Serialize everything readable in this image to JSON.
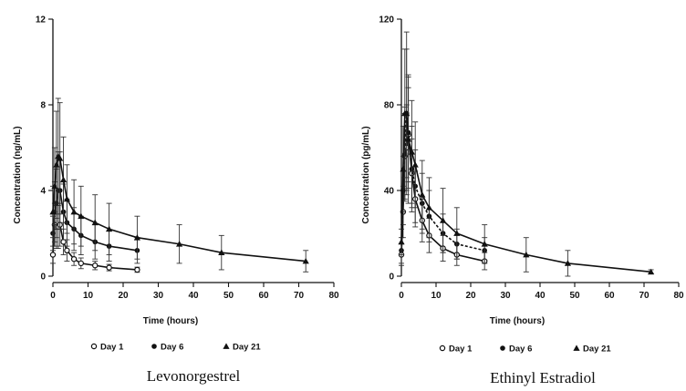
{
  "chart_data": [
    {
      "type": "line",
      "caption": "Levonorgestrel",
      "xlabel": "Time (hours)",
      "ylabel": "Concentration (ng/mL)",
      "xlim": [
        0,
        80
      ],
      "ylim": [
        0,
        12
      ],
      "xticks": [
        0,
        10,
        20,
        30,
        40,
        50,
        60,
        70,
        80
      ],
      "yticks": [
        0,
        4,
        8,
        12
      ],
      "legend_position": "bottom",
      "series": [
        {
          "name": "Day 1",
          "marker": "circle",
          "dash": "solid",
          "x": [
            0,
            0.5,
            1,
            1.5,
            2,
            3,
            4,
            6,
            8,
            12,
            16,
            24
          ],
          "y": [
            1.0,
            2.4,
            2.3,
            2.3,
            2.4,
            1.6,
            1.2,
            0.8,
            0.6,
            0.5,
            0.4,
            0.3
          ],
          "err": [
            0.4,
            1.0,
            1.0,
            1.0,
            1.0,
            0.6,
            0.5,
            0.3,
            0.25,
            0.2,
            0.15,
            0.12
          ]
        },
        {
          "name": "Day 6",
          "marker": "dot",
          "dash": "solid",
          "x": [
            0,
            0.5,
            1,
            1.5,
            2,
            3,
            4,
            6,
            8,
            12,
            16,
            24
          ],
          "y": [
            2.0,
            3.0,
            3.4,
            4.0,
            4.0,
            3.0,
            2.5,
            2.2,
            1.9,
            1.6,
            1.4,
            1.2
          ],
          "err": [
            0.8,
            1.4,
            1.6,
            1.8,
            1.8,
            1.3,
            1.1,
            1.0,
            0.9,
            0.8,
            0.7,
            0.6
          ]
        },
        {
          "name": "Day 21",
          "marker": "triangle",
          "dash": "solid",
          "x": [
            0,
            0.5,
            1,
            1.5,
            2,
            3,
            4,
            6,
            8,
            12,
            16,
            24,
            36,
            48,
            72
          ],
          "y": [
            3.0,
            4.2,
            5.2,
            5.6,
            5.5,
            4.5,
            3.6,
            3.0,
            2.8,
            2.5,
            2.2,
            1.8,
            1.5,
            1.1,
            0.7
          ],
          "err": [
            1.2,
            1.8,
            2.5,
            2.7,
            2.6,
            2.0,
            1.6,
            1.5,
            1.4,
            1.3,
            1.2,
            1.0,
            0.9,
            0.8,
            0.5
          ]
        }
      ]
    },
    {
      "type": "line",
      "caption": "Ethinyl Estradiol",
      "xlabel": "Time (hours)",
      "ylabel": "Concentration (pg/mL)",
      "xlim": [
        0,
        80
      ],
      "ylim": [
        0,
        120
      ],
      "xticks": [
        0,
        10,
        20,
        30,
        40,
        50,
        60,
        70,
        80
      ],
      "yticks": [
        0,
        40,
        80,
        120
      ],
      "legend_position": "bottom",
      "series": [
        {
          "name": "Day 1",
          "marker": "circle",
          "dash": "solid",
          "x": [
            0,
            0.5,
            1,
            1.5,
            2,
            3,
            4,
            6,
            8,
            12,
            16,
            24
          ],
          "y": [
            10,
            30,
            56,
            60,
            66,
            48,
            36,
            26,
            19,
            13,
            10,
            7
          ],
          "err": [
            5,
            12,
            20,
            20,
            22,
            16,
            13,
            10,
            8,
            6,
            5,
            4
          ]
        },
        {
          "name": "Day 6",
          "marker": "dot",
          "dash": "dashed",
          "x": [
            0,
            0.5,
            1,
            1.5,
            2,
            3,
            4,
            6,
            8,
            12,
            16,
            24
          ],
          "y": [
            12,
            40,
            57,
            76,
            67,
            50,
            42,
            34,
            28,
            20,
            15,
            12
          ],
          "err": [
            6,
            16,
            22,
            30,
            26,
            20,
            17,
            14,
            12,
            9,
            7,
            6
          ]
        },
        {
          "name": "Day 21",
          "marker": "triangle",
          "dash": "solid",
          "x": [
            0,
            0.5,
            1,
            1.5,
            2,
            3,
            4,
            6,
            8,
            12,
            16,
            24,
            36,
            48,
            72
          ],
          "y": [
            16,
            50,
            76,
            76,
            64,
            58,
            52,
            38,
            32,
            26,
            20,
            15,
            10,
            6,
            2
          ],
          "err": [
            6,
            20,
            30,
            38,
            30,
            24,
            20,
            16,
            14,
            15,
            12,
            9,
            8,
            6,
            1
          ]
        }
      ]
    }
  ]
}
